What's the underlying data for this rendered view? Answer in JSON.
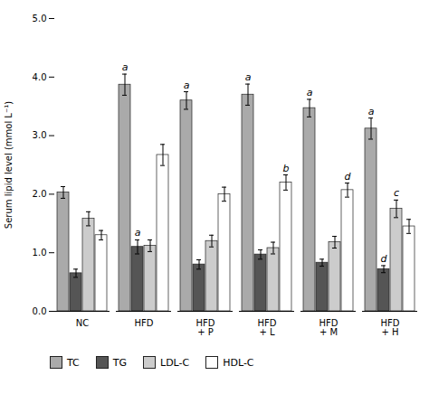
{
  "chart_data": {
    "type": "bar",
    "categories": [
      "NC",
      "HFD",
      "HFD\n+ P",
      "HFD\n+ L",
      "HFD\n+ M",
      "HFD\n+ H"
    ],
    "series": [
      {
        "name": "TC",
        "color": "#aaaaaa",
        "values": [
          2.03,
          3.87,
          3.6,
          3.7,
          3.47,
          3.12
        ],
        "errors": [
          0.1,
          0.18,
          0.15,
          0.18,
          0.15,
          0.18
        ],
        "annotations": [
          null,
          "a",
          "a",
          "a",
          "a",
          "a"
        ]
      },
      {
        "name": "TG",
        "color": "#555555",
        "values": [
          0.65,
          1.1,
          0.8,
          0.97,
          0.83,
          0.72
        ],
        "errors": [
          0.07,
          0.12,
          0.08,
          0.08,
          0.06,
          0.06
        ],
        "annotations": [
          null,
          "a",
          null,
          null,
          null,
          "d"
        ]
      },
      {
        "name": "LDL-C",
        "color": "#cccccc",
        "values": [
          1.58,
          1.12,
          1.2,
          1.08,
          1.18,
          1.75
        ],
        "errors": [
          0.12,
          0.1,
          0.1,
          0.1,
          0.1,
          0.15
        ],
        "annotations": [
          null,
          null,
          null,
          null,
          null,
          "c"
        ]
      },
      {
        "name": "HDL-C",
        "color": "#ffffff",
        "values": [
          1.3,
          2.67,
          2.0,
          2.2,
          2.07,
          1.45
        ],
        "errors": [
          0.08,
          0.18,
          0.12,
          0.13,
          0.12,
          0.12
        ],
        "annotations": [
          null,
          null,
          null,
          "b",
          "d",
          null
        ]
      }
    ],
    "ylabel": "Serum lipid level (mmol L⁻¹)",
    "ylim": [
      0,
      5
    ],
    "yticks": [
      0,
      1,
      2,
      3,
      4,
      5
    ],
    "grid": false,
    "legend": "bottom"
  }
}
